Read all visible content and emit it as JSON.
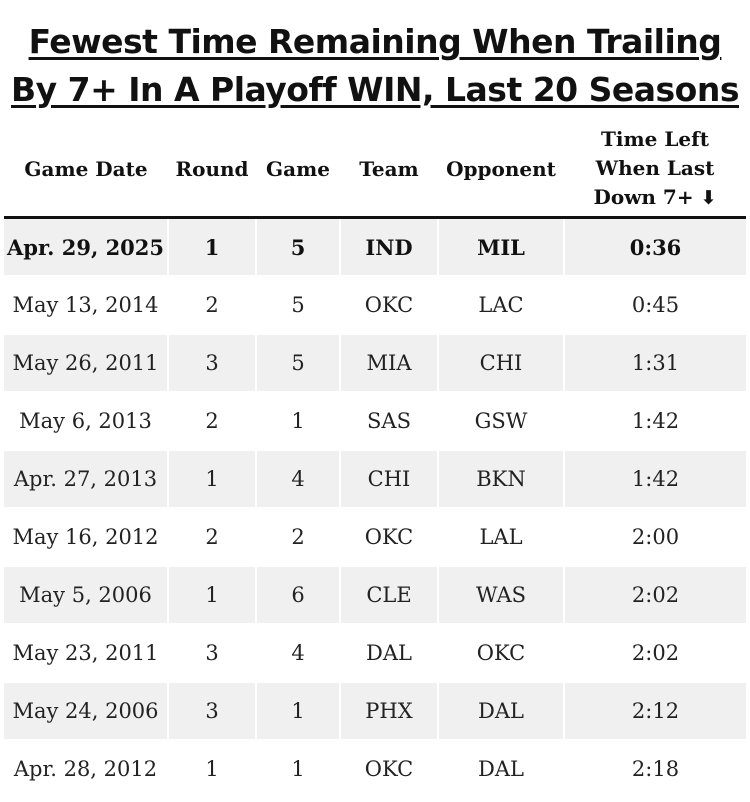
{
  "title": {
    "line1": "Fewest Time Remaining When Trailing",
    "line2": "By 7+ In A Playoff WIN, Last 20 Seasons"
  },
  "table": {
    "headers": {
      "game_date": "Game Date",
      "round": "Round",
      "game": "Game",
      "team": "Team",
      "opponent": "Opponent",
      "time_left_line1": "Time Left",
      "time_left_line2": "When Last",
      "time_left_line3": "Down 7+",
      "sort_icon": "arrow-down-icon"
    },
    "rows": [
      {
        "date": "Apr. 29, 2025",
        "round": "1",
        "game": "5",
        "team": "IND",
        "opponent": "MIL",
        "time_left": "0:36"
      },
      {
        "date": "May 13, 2014",
        "round": "2",
        "game": "5",
        "team": "OKC",
        "opponent": "LAC",
        "time_left": "0:45"
      },
      {
        "date": "May 26, 2011",
        "round": "3",
        "game": "5",
        "team": "MIA",
        "opponent": "CHI",
        "time_left": "1:31"
      },
      {
        "date": "May 6, 2013",
        "round": "2",
        "game": "1",
        "team": "SAS",
        "opponent": "GSW",
        "time_left": "1:42"
      },
      {
        "date": "Apr. 27, 2013",
        "round": "1",
        "game": "4",
        "team": "CHI",
        "opponent": "BKN",
        "time_left": "1:42"
      },
      {
        "date": "May 16, 2012",
        "round": "2",
        "game": "2",
        "team": "OKC",
        "opponent": "LAL",
        "time_left": "2:00"
      },
      {
        "date": "May 5, 2006",
        "round": "1",
        "game": "6",
        "team": "CLE",
        "opponent": "WAS",
        "time_left": "2:02"
      },
      {
        "date": "May 23, 2011",
        "round": "3",
        "game": "4",
        "team": "DAL",
        "opponent": "OKC",
        "time_left": "2:02"
      },
      {
        "date": "May 24, 2006",
        "round": "3",
        "game": "1",
        "team": "PHX",
        "opponent": "DAL",
        "time_left": "2:12"
      },
      {
        "date": "Apr. 28, 2012",
        "round": "1",
        "game": "1",
        "team": "OKC",
        "opponent": "DAL",
        "time_left": "2:18"
      }
    ]
  }
}
